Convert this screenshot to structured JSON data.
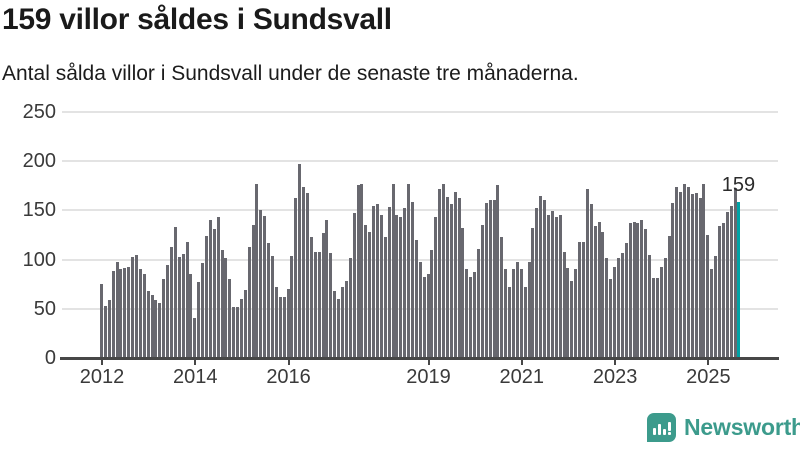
{
  "header": {
    "title": "159 villor såldes i Sundsvall",
    "subtitle": "Antal sålda villor i Sundsvall under de senaste tre månaderna."
  },
  "chart_data": {
    "type": "bar",
    "title": "159 villor såldes i Sundsvall",
    "description": "Antal sålda villor i Sundsvall under de senaste tre månaderna.",
    "x_unit": "month",
    "x_start": "2012-01",
    "x_end": "2025-09",
    "ylim": [
      0,
      250
    ],
    "yticks": [
      0,
      50,
      100,
      150,
      200,
      250
    ],
    "xtick_years": [
      2012,
      2014,
      2016,
      2019,
      2021,
      2023,
      2025
    ],
    "grid": "horizontal",
    "legend_position": "none",
    "bar_color": "#68686f",
    "highlight_color": "#00a3a6",
    "highlight_index": 164,
    "highlight_label": "159",
    "values": [
      75,
      53,
      59,
      88,
      98,
      91,
      92,
      93,
      103,
      105,
      90,
      85,
      68,
      64,
      59,
      56,
      80,
      95,
      113,
      133,
      103,
      106,
      118,
      85,
      41,
      77,
      97,
      124,
      140,
      131,
      143,
      110,
      102,
      80,
      52,
      52,
      60,
      69,
      113,
      135,
      177,
      150,
      144,
      117,
      104,
      72,
      62,
      62,
      70,
      104,
      163,
      197,
      174,
      168,
      123,
      108,
      108,
      127,
      140,
      107,
      68,
      60,
      72,
      78,
      102,
      147,
      176,
      177,
      135,
      128,
      155,
      157,
      145,
      123,
      153,
      177,
      145,
      143,
      152,
      177,
      159,
      120,
      98,
      82,
      85,
      110,
      143,
      172,
      177,
      164,
      157,
      169,
      163,
      132,
      90,
      82,
      87,
      111,
      135,
      158,
      161,
      161,
      176,
      123,
      90,
      72,
      90,
      98,
      90,
      72,
      98,
      132,
      152,
      165,
      161,
      145,
      149,
      143,
      145,
      108,
      92,
      78,
      91,
      118,
      118,
      172,
      157,
      134,
      138,
      128,
      102,
      80,
      93,
      102,
      107,
      117,
      137,
      138,
      137,
      140,
      131,
      105,
      81,
      81,
      93,
      102,
      124,
      158,
      174,
      169,
      177,
      174,
      167,
      168,
      163,
      177,
      125,
      90,
      104,
      134,
      137,
      148,
      155,
      173,
      159
    ]
  },
  "branding": {
    "wordmark": "Newsworthy",
    "color": "#3c9b8c",
    "icon": "newsworthy-bubble-chart-icon"
  }
}
